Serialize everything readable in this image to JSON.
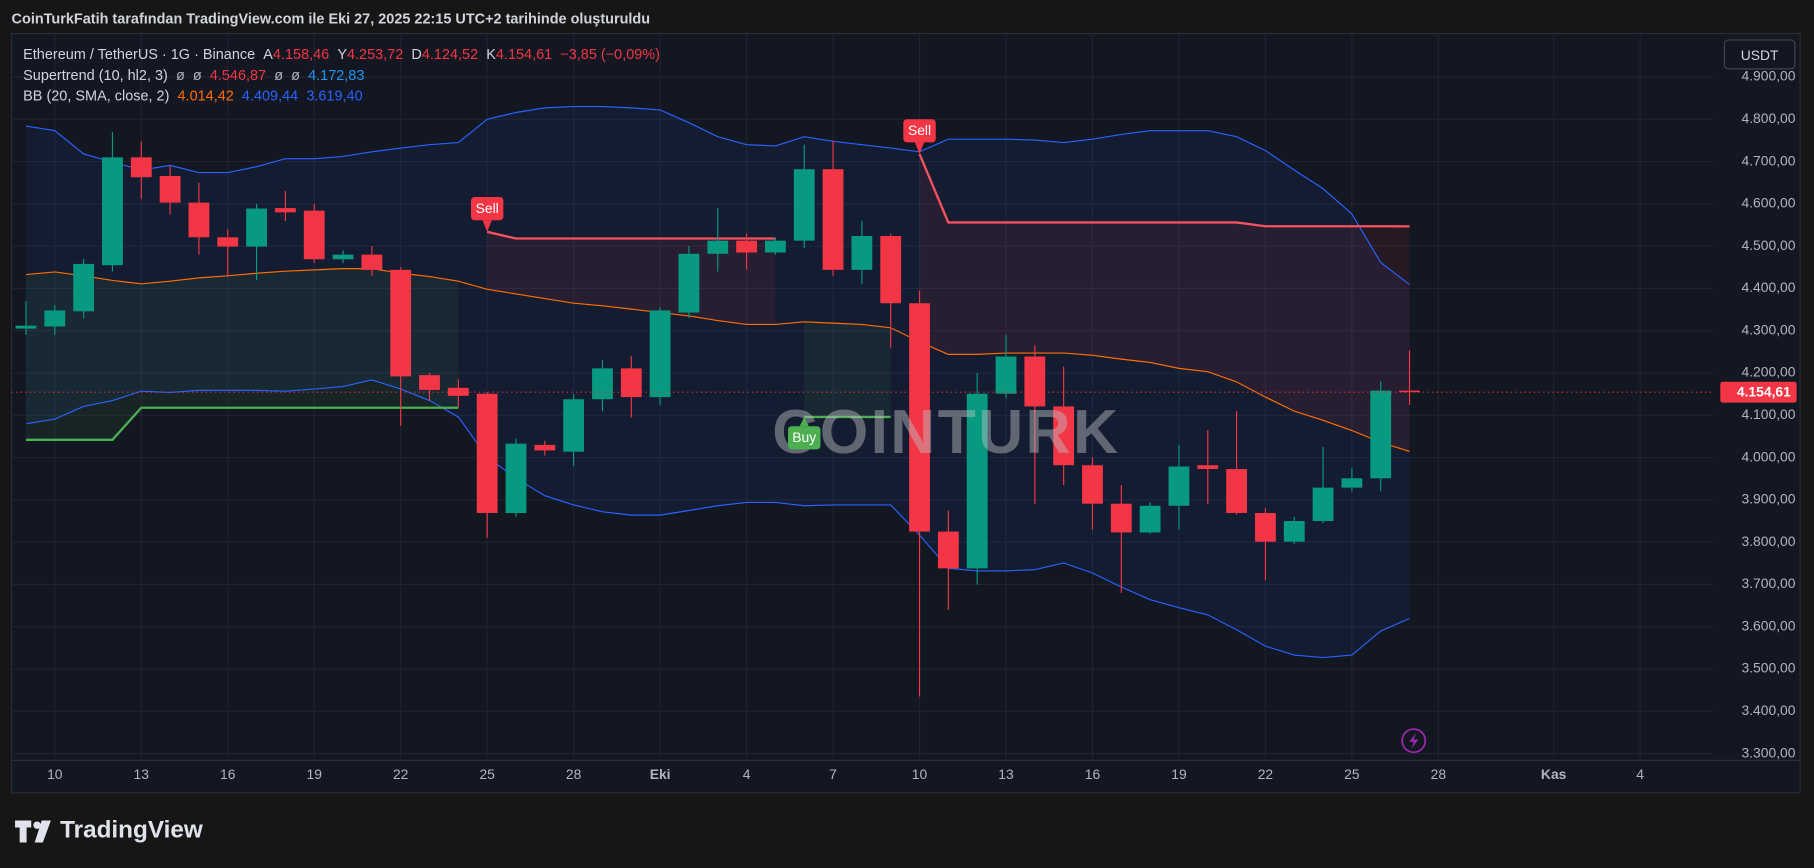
{
  "header": {
    "title": "CoinTurkFatih tarafından TradingView.com ile Eki 27, 2025 22:15 UTC+2 tarihinde oluşturuldu"
  },
  "chart_data": {
    "type": "candlestick",
    "currency": "USDT",
    "watermark": "COINTURK",
    "legend": [
      {
        "name": "Ethereum / TetherUS · 1G · Binance",
        "items": [
          {
            "prefix": "A",
            "text": "4.158,46",
            "color": "#f23645"
          },
          {
            "prefix": "Y",
            "text": "4.253,72",
            "color": "#f23645"
          },
          {
            "prefix": "D",
            "text": "4.124,52",
            "color": "#f23645"
          },
          {
            "prefix": "K",
            "text": "4.154,61",
            "color": "#f23645"
          },
          {
            "text": "−3,85 (−0,09%)",
            "color": "#f23645"
          }
        ]
      },
      {
        "name": "Supertrend (10, hl2, 3)",
        "items": [
          {
            "text": "ø",
            "color": "#b2b5be"
          },
          {
            "text": "ø",
            "color": "#b2b5be"
          },
          {
            "text": "4.546,87",
            "color": "#f23645"
          },
          {
            "text": "ø",
            "color": "#b2b5be"
          },
          {
            "text": "ø",
            "color": "#b2b5be"
          },
          {
            "text": "4.172,83",
            "color": "#2196f3"
          }
        ]
      },
      {
        "name": "BB (20, SMA, close, 2)",
        "items": [
          {
            "text": "4.014,42",
            "color": "#ff6d00"
          },
          {
            "text": "4.409,44",
            "color": "#2962ff"
          },
          {
            "text": "3.619,40",
            "color": "#2962ff"
          }
        ]
      }
    ],
    "categories": [
      null,
      "10",
      null,
      null,
      "13",
      null,
      null,
      "16",
      null,
      null,
      "19",
      null,
      null,
      "22",
      null,
      null,
      "25",
      null,
      null,
      "28",
      null,
      null,
      "Eki",
      null,
      null,
      "4",
      null,
      null,
      "7",
      null,
      null,
      "10",
      null,
      null,
      "13",
      null,
      null,
      "16",
      null,
      null,
      "19",
      null,
      null,
      "22",
      null,
      null,
      "25",
      null,
      null,
      "28",
      null,
      null,
      null,
      "Kas",
      null,
      null,
      "4",
      null,
      null
    ],
    "open": [
      4305,
      4310,
      4346,
      4455,
      4710,
      4666,
      4603,
      4521,
      4499,
      4590,
      4584,
      4469,
      4480,
      4444,
      4195,
      4165,
      4151,
      3869,
      4030,
      4014,
      4138,
      4211,
      4143,
      4343,
      4482,
      4513,
      4485,
      4513,
      4682,
      4444,
      4524,
      4365,
      3825,
      3738,
      4151,
      4239,
      4121,
      3982,
      3891,
      3823,
      3886,
      3982,
      3973,
      3869,
      3801,
      3850,
      3929,
      3951,
      4158.46,
      null,
      null,
      null,
      null,
      null,
      null,
      null,
      null,
      null,
      null
    ],
    "high": [
      4370,
      4360,
      4470,
      4770,
      4748,
      4690,
      4650,
      4540,
      4600,
      4630,
      4600,
      4490,
      4500,
      4450,
      4200,
      4185,
      4155,
      4045,
      4040,
      4150,
      4230,
      4240,
      4355,
      4500,
      4590,
      4530,
      4520,
      4740,
      4750,
      4560,
      4530,
      4395,
      3875,
      4200,
      4290,
      4265,
      4215,
      4000,
      3935,
      3895,
      4030,
      4065,
      4110,
      3880,
      3860,
      4025,
      3975,
      4180,
      4253.72,
      null,
      null,
      null,
      null,
      null,
      null,
      null,
      null,
      null,
      null
    ],
    "low": [
      4290,
      4290,
      4330,
      4440,
      4611,
      4575,
      4480,
      4430,
      4420,
      4560,
      4460,
      4460,
      4430,
      4075,
      4135,
      4120,
      3810,
      3860,
      4005,
      3980,
      4110,
      4095,
      4125,
      4330,
      4440,
      4445,
      4480,
      4495,
      4430,
      4410,
      4260,
      3435,
      3640,
      3700,
      4140,
      3890,
      3935,
      3830,
      3680,
      3820,
      3830,
      3890,
      3865,
      3710,
      3795,
      3845,
      3920,
      3920,
      4124.52,
      null,
      null,
      null,
      null,
      null,
      null,
      null,
      null,
      null,
      null
    ],
    "close": [
      4312,
      4348,
      4458,
      4710,
      4663,
      4603,
      4521,
      4499,
      4589,
      4580,
      4469,
      4480,
      4444,
      4192,
      4160,
      4146,
      3869,
      4033,
      4017,
      4138,
      4211,
      4143,
      4348,
      4482,
      4513,
      4485,
      4513,
      4682,
      4444,
      4524,
      4365,
      3825,
      3738,
      4151,
      4239,
      4121,
      3982,
      3891,
      3823,
      3886,
      3979,
      3973,
      3869,
      3801,
      3850,
      3929,
      3951,
      4158.46,
      4154.61,
      null,
      null,
      null,
      null,
      null,
      null,
      null,
      null,
      null,
      null
    ],
    "up_color": "#089981",
    "down_color": "#f23645",
    "bollinger": {
      "fill": "rgba(41,98,255,0.07)",
      "upper": {
        "color": "#2962ff",
        "values": [
          4784,
          4773,
          4718,
          4699,
          4680,
          4691,
          4674,
          4674,
          4688,
          4707,
          4707,
          4712,
          4723,
          4732,
          4740,
          4745,
          4800,
          4816,
          4827,
          4830,
          4830,
          4827,
          4822,
          4792,
          4759,
          4740,
          4737,
          4759,
          4748,
          4740,
          4732,
          4723,
          4753,
          4753,
          4753,
          4751,
          4745,
          4753,
          4764,
          4773,
          4773,
          4773,
          4759,
          4726,
          4680,
          4636,
          4576,
          4461,
          4409.44,
          null,
          null,
          null,
          null,
          null,
          null,
          null,
          null,
          null,
          null
        ]
      },
      "basis": {
        "color": "#ff6d00",
        "values": [
          4433,
          4439,
          4430,
          4419,
          4411,
          4417,
          4425,
          4430,
          4436,
          4441,
          4444,
          4447,
          4447,
          4436,
          4428,
          4417,
          4398,
          4387,
          4376,
          4365,
          4359,
          4351,
          4343,
          4335,
          4324,
          4315,
          4315,
          4321,
          4318,
          4315,
          4307,
          4274,
          4244,
          4244,
          4247,
          4247,
          4247,
          4242,
          4233,
          4225,
          4211,
          4203,
          4179,
          4143,
          4110,
          4088,
          4064,
          4036,
          4014.42,
          null,
          null,
          null,
          null,
          null,
          null,
          null,
          null,
          null,
          null
        ]
      },
      "lower": {
        "color": "#2962ff",
        "values": [
          4080,
          4091,
          4121,
          4135,
          4157,
          4154,
          4159,
          4159,
          4159,
          4157,
          4162,
          4168,
          4184,
          4162,
          4135,
          4096,
          4001,
          3951,
          3910,
          3888,
          3872,
          3864,
          3864,
          3875,
          3886,
          3894,
          3894,
          3886,
          3888,
          3888,
          3888,
          3817,
          3738,
          3732,
          3732,
          3735,
          3751,
          3727,
          3694,
          3664,
          3645,
          3628,
          3593,
          3554,
          3533,
          3527,
          3533,
          3590,
          3619.4,
          null,
          null,
          null,
          null,
          null,
          null,
          null,
          null,
          null,
          null
        ]
      }
    },
    "supertrend": {
      "up": {
        "color": "#4caf50",
        "fill": "rgba(76,175,80,0.09)",
        "values": [
          4042,
          4042,
          4042,
          4042,
          4118,
          4118,
          4118,
          4118,
          4118,
          4118,
          4118,
          4118,
          4118,
          4118,
          4118,
          4118,
          null,
          null,
          null,
          null,
          null,
          null,
          null,
          null,
          null,
          null,
          null,
          4096,
          4096,
          4096,
          4096,
          null,
          null,
          null,
          null,
          null,
          null,
          null,
          null,
          null,
          null,
          null,
          null,
          null,
          null,
          null,
          null,
          null,
          null,
          null,
          null,
          null,
          null,
          null,
          null,
          null,
          null,
          null,
          null
        ]
      },
      "down": {
        "color": "#f7525f",
        "fill": "rgba(242,54,69,0.09)",
        "values": [
          null,
          null,
          null,
          null,
          null,
          null,
          null,
          null,
          null,
          null,
          null,
          null,
          null,
          null,
          null,
          null,
          4534,
          4518,
          4518,
          4518,
          4518,
          4518,
          4518,
          4518,
          4518,
          4518,
          4518,
          null,
          null,
          null,
          null,
          4718,
          4556,
          4556,
          4556,
          4556,
          4556,
          4556,
          4556,
          4556,
          4556,
          4556,
          4556,
          4547,
          4547,
          4547,
          4547,
          4547,
          4546.87,
          null,
          null,
          null,
          null,
          null,
          null,
          null,
          null,
          null,
          null
        ]
      }
    },
    "signals": [
      null,
      null,
      null,
      null,
      null,
      null,
      null,
      null,
      null,
      null,
      null,
      null,
      null,
      null,
      null,
      null,
      "Sell",
      null,
      null,
      null,
      null,
      null,
      null,
      null,
      null,
      null,
      null,
      "Buy",
      null,
      null,
      null,
      "Sell",
      null,
      null,
      null,
      null,
      null,
      null,
      null,
      null,
      null,
      null,
      null,
      null,
      null,
      null,
      null,
      null,
      null,
      null,
      null,
      null,
      null,
      null,
      null,
      null,
      null,
      null,
      null
    ],
    "last_price": {
      "value": 4154.61,
      "label": "4.154,61"
    },
    "ylim": [
      3284,
      5000
    ],
    "yticks": [
      {
        "value": 3300,
        "label": "3.300,00"
      },
      {
        "value": 3400,
        "label": "3.400,00"
      },
      {
        "value": 3500,
        "label": "3.500,00"
      },
      {
        "value": 3600,
        "label": "3.600,00"
      },
      {
        "value": 3700,
        "label": "3.700,00"
      },
      {
        "value": 3800,
        "label": "3.800,00"
      },
      {
        "value": 3900,
        "label": "3.900,00"
      },
      {
        "value": 4000,
        "label": "4.000,00"
      },
      {
        "value": 4100,
        "label": "4.100,00"
      },
      {
        "value": 4200,
        "label": "4.200,00"
      },
      {
        "value": 4300,
        "label": "4.300,00"
      },
      {
        "value": 4400,
        "label": "4.400,00"
      },
      {
        "value": 4500,
        "label": "4.500,00"
      },
      {
        "value": 4600,
        "label": "4.600,00"
      },
      {
        "value": 4700,
        "label": "4.700,00"
      },
      {
        "value": 4800,
        "label": "4.800,00"
      },
      {
        "value": 4900,
        "label": "4.900,00"
      }
    ],
    "grid": true
  },
  "footer": {
    "brand": "TradingView"
  }
}
